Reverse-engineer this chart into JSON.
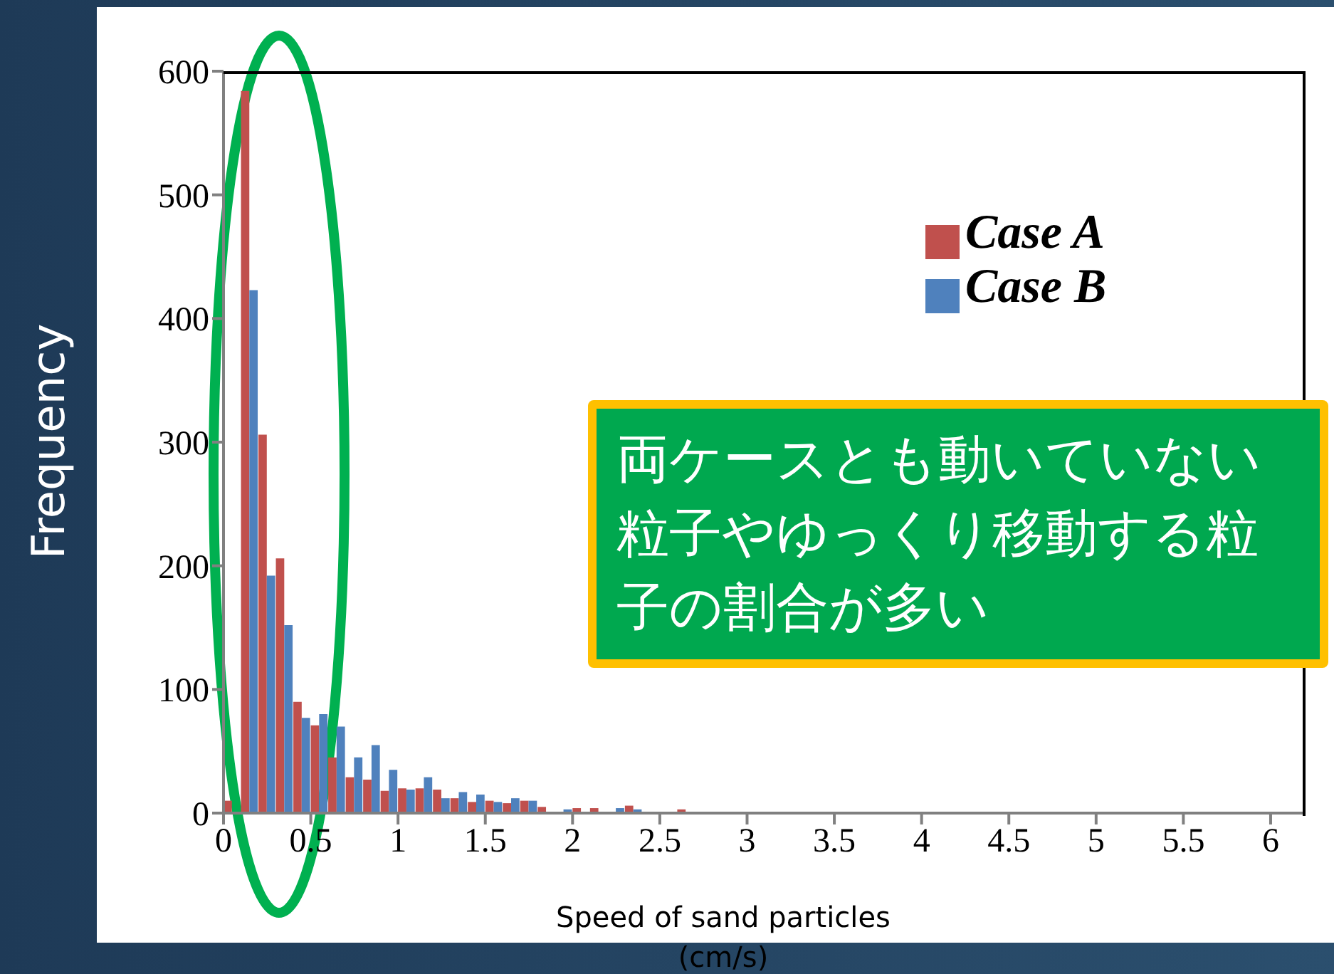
{
  "chart_data": {
    "type": "histogram",
    "xlabel": "Speed of sand particles (cm/s)",
    "ylabel": "Frequency",
    "annotations": [
      "両ケースとも動いていない粒子やゆっくり移動する粒子の割合が多い"
    ],
    "bins": [
      0,
      0.1,
      0.2,
      0.3,
      0.4,
      0.5,
      0.6,
      0.7,
      0.8,
      0.9,
      1,
      1.1,
      1.2,
      1.3,
      1.4,
      1.5,
      1.6,
      1.7,
      1.8,
      1.9,
      2,
      2.1,
      2.2,
      2.3,
      2.4,
      2.5,
      2.6,
      2.7,
      2.8,
      2.9,
      3,
      3.1,
      3.2,
      3.3,
      3.4,
      3.5,
      3.6,
      3.7,
      3.8,
      3.9,
      4,
      4.1,
      4.2,
      4.3,
      4.4,
      4.5,
      4.6,
      4.7,
      4.8,
      4.9,
      5,
      5.1,
      5.2,
      5.3,
      5.4,
      5.5,
      5.6,
      5.7,
      5.8,
      5.9,
      6
    ],
    "series": [
      {
        "name": "Case A",
        "color": "#c0504d",
        "values": [
          10,
          584,
          306,
          206,
          90,
          71,
          45,
          29,
          27,
          18,
          20,
          20,
          19,
          12,
          9,
          10,
          8,
          10,
          5,
          0,
          4,
          4,
          1,
          6,
          0,
          0,
          3,
          0,
          1,
          0,
          0,
          0,
          null,
          0,
          0,
          0,
          0,
          0,
          0,
          0,
          0,
          0,
          0,
          0,
          0,
          0,
          0,
          0,
          0,
          0,
          0,
          0,
          0,
          0,
          0,
          0,
          0,
          0,
          0,
          0
        ]
      },
      {
        "name": "Case B",
        "color": "#4f81bd",
        "values": [
          0,
          423,
          192,
          152,
          77,
          80,
          70,
          45,
          55,
          35,
          19,
          29,
          12,
          17,
          15,
          9,
          12,
          10,
          0,
          3,
          1,
          1,
          4,
          3,
          1,
          0,
          0,
          1,
          0,
          0,
          0,
          0,
          0,
          1,
          1,
          0,
          0,
          0,
          0,
          0,
          0,
          0,
          0,
          0,
          0,
          0,
          0,
          0,
          0,
          0,
          0,
          0,
          0,
          0,
          0,
          0,
          0,
          0,
          0,
          0
        ]
      }
    ],
    "xlim": [
      0,
      6.2
    ],
    "xticks": [
      0,
      0.5,
      1,
      1.5,
      2,
      2.5,
      3,
      3.5,
      4,
      4.5,
      5,
      5.5,
      6
    ],
    "ylim": [
      0,
      600
    ],
    "yticks": [
      0,
      100,
      200,
      300,
      400,
      500,
      600
    ],
    "grid": false,
    "legend": "top right"
  }
}
